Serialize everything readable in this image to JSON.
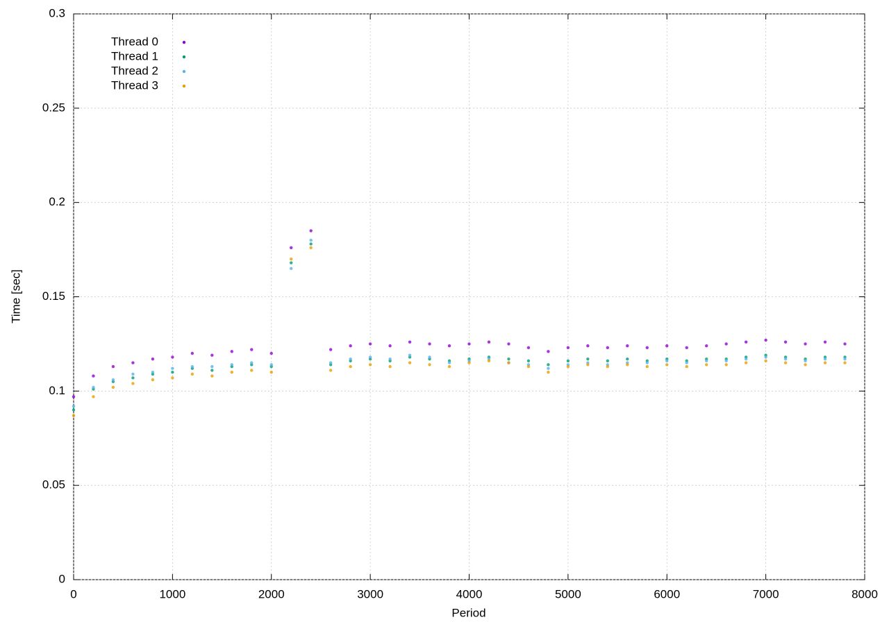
{
  "chart_data": {
    "type": "scatter",
    "x_label": "Period",
    "y_label": "Time [sec]",
    "x": [
      0,
      200,
      400,
      600,
      800,
      1000,
      1200,
      1400,
      1600,
      1800,
      2000,
      2200,
      2400,
      2600,
      2800,
      3000,
      3200,
      3400,
      3600,
      3800,
      4000,
      4200,
      4400,
      4600,
      4800,
      5000,
      5200,
      5400,
      5600,
      5800,
      6000,
      6200,
      6400,
      6600,
      6800,
      7000,
      7200,
      7400,
      7600,
      7800
    ],
    "series": [
      {
        "name": "Thread 0",
        "color": "#9400d3",
        "values": [
          0.097,
          0.108,
          0.113,
          0.115,
          0.117,
          0.118,
          0.12,
          0.119,
          0.121,
          0.122,
          0.12,
          0.176,
          0.185,
          0.122,
          0.124,
          0.125,
          0.124,
          0.126,
          0.125,
          0.124,
          0.125,
          0.126,
          0.125,
          0.123,
          0.121,
          0.123,
          0.124,
          0.123,
          0.124,
          0.123,
          0.124,
          0.123,
          0.124,
          0.125,
          0.126,
          0.127,
          0.126,
          0.125,
          0.126,
          0.125
        ]
      },
      {
        "name": "Thread 1",
        "color": "#009e73",
        "values": [
          0.09,
          0.101,
          0.105,
          0.107,
          0.109,
          0.11,
          0.112,
          0.111,
          0.113,
          0.114,
          0.113,
          0.168,
          0.178,
          0.114,
          0.116,
          0.117,
          0.116,
          0.118,
          0.117,
          0.116,
          0.117,
          0.118,
          0.117,
          0.116,
          0.114,
          0.116,
          0.117,
          0.116,
          0.117,
          0.116,
          0.117,
          0.116,
          0.117,
          0.117,
          0.118,
          0.119,
          0.118,
          0.117,
          0.118,
          0.118
        ]
      },
      {
        "name": "Thread 2",
        "color": "#56b4e9",
        "values": [
          0.092,
          0.102,
          0.106,
          0.109,
          0.11,
          0.112,
          0.113,
          0.113,
          0.114,
          0.115,
          0.114,
          0.165,
          0.18,
          0.115,
          0.117,
          0.118,
          0.117,
          0.119,
          0.118,
          0.115,
          0.116,
          0.117,
          0.115,
          0.114,
          0.112,
          0.114,
          0.115,
          0.114,
          0.115,
          0.115,
          0.116,
          0.115,
          0.116,
          0.116,
          0.117,
          0.118,
          0.117,
          0.116,
          0.117,
          0.117
        ]
      },
      {
        "name": "Thread 3",
        "color": "#e69f00",
        "values": [
          0.087,
          0.097,
          0.102,
          0.104,
          0.106,
          0.107,
          0.109,
          0.108,
          0.11,
          0.111,
          0.11,
          0.17,
          0.176,
          0.111,
          0.113,
          0.114,
          0.113,
          0.115,
          0.114,
          0.113,
          0.115,
          0.116,
          0.115,
          0.113,
          0.11,
          0.113,
          0.114,
          0.113,
          0.114,
          0.113,
          0.114,
          0.113,
          0.114,
          0.114,
          0.115,
          0.116,
          0.115,
          0.114,
          0.115,
          0.115
        ]
      }
    ],
    "xlim": [
      0,
      8000
    ],
    "xticks": [
      0,
      1000,
      2000,
      3000,
      4000,
      5000,
      6000,
      7000,
      8000
    ],
    "ylim": [
      0,
      0.3
    ],
    "yticks": [
      0,
      0.05,
      0.1,
      0.15,
      0.2,
      0.25,
      0.3
    ],
    "grid": true,
    "legend": "top-left"
  }
}
